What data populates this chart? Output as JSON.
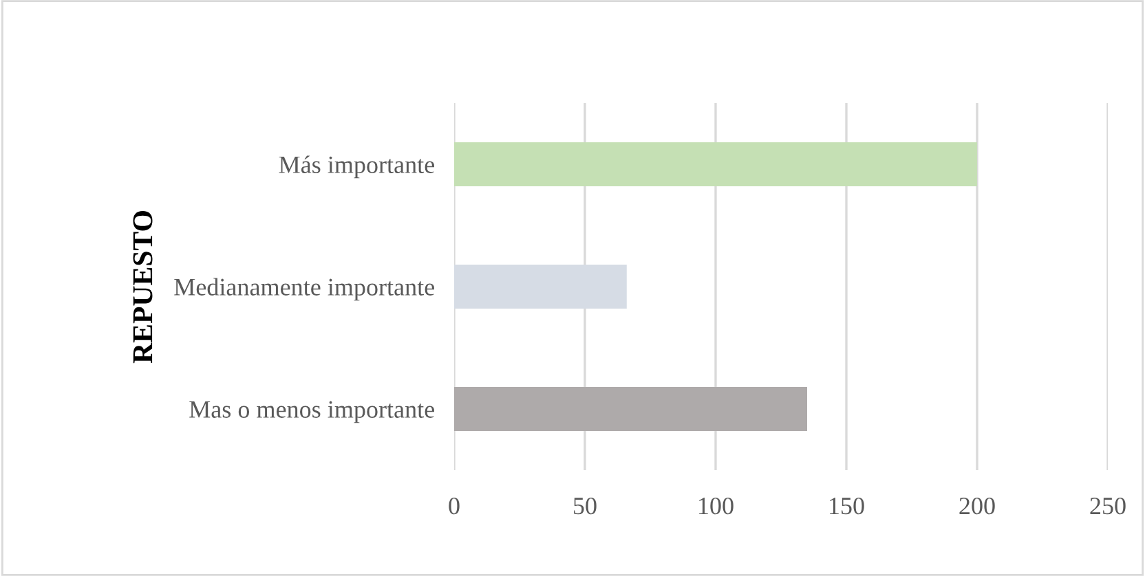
{
  "chart_data": {
    "type": "bar",
    "orientation": "horizontal",
    "ylabel": "REPUESTO",
    "categories": [
      "Más importante",
      "Medianamente importante",
      "Mas o menos importante"
    ],
    "values": [
      200,
      66,
      135
    ],
    "colors": [
      "#c5e0b4",
      "#d6dce5",
      "#aeaaaa"
    ],
    "xlim": [
      0,
      250
    ],
    "xticks": [
      0,
      50,
      100,
      150,
      200,
      250
    ],
    "grid": "x"
  }
}
